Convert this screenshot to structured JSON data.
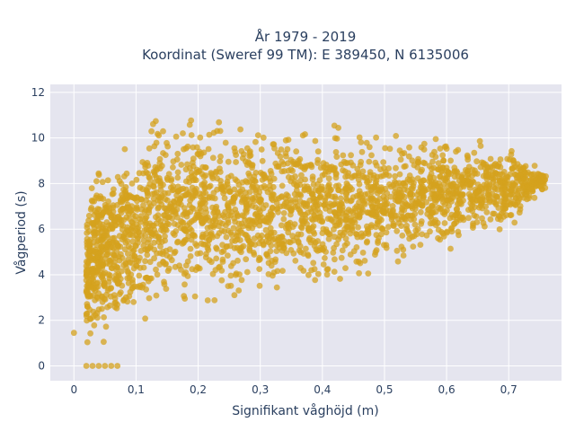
{
  "chart_data": {
    "type": "scatter",
    "title_lines": [
      "År 1979 - 2019",
      "Koordinat (Sweref 99 TM): E 389450, N 6135006"
    ],
    "xlabel": "Signifikant våghöjd (m)",
    "ylabel": "Vågperiod (s)",
    "xlim": [
      -0.038,
      0.785
    ],
    "ylim": [
      -0.65,
      12.35
    ],
    "x_ticks": [
      "0",
      "0,1",
      "0,2",
      "0,3",
      "0,4",
      "0,5",
      "0,6",
      "0,7"
    ],
    "x_tick_values": [
      0,
      0.1,
      0.2,
      0.3,
      0.4,
      0.5,
      0.6,
      0.7
    ],
    "y_ticks": [
      "0",
      "2",
      "4",
      "6",
      "8",
      "10",
      "12"
    ],
    "y_tick_values": [
      0,
      2,
      4,
      6,
      8,
      10,
      12
    ],
    "grid": true,
    "marker_color": "#d4a21e",
    "plot_background": "#e5e5ef",
    "lower_envelope": [
      [
        0.0,
        1.45
      ],
      [
        0.03,
        1.1
      ],
      [
        0.1,
        1.3
      ],
      [
        0.2,
        1.9
      ],
      [
        0.3,
        2.6
      ],
      [
        0.4,
        3.0
      ],
      [
        0.5,
        3.6
      ],
      [
        0.6,
        4.6
      ],
      [
        0.7,
        5.8
      ],
      [
        0.75,
        7.6
      ]
    ],
    "upper_envelope": [
      [
        0.02,
        7.0
      ],
      [
        0.04,
        9.2
      ],
      [
        0.1,
        10.5
      ],
      [
        0.13,
        11.7
      ],
      [
        0.3,
        11.0
      ],
      [
        0.5,
        10.8
      ],
      [
        0.6,
        10.5
      ],
      [
        0.7,
        9.9
      ],
      [
        0.75,
        8.8
      ]
    ],
    "zero_period_points": [
      [
        0.02,
        0
      ],
      [
        0.03,
        0
      ],
      [
        0.04,
        0
      ],
      [
        0.05,
        0
      ],
      [
        0.06,
        0
      ],
      [
        0.07,
        0
      ]
    ]
  }
}
